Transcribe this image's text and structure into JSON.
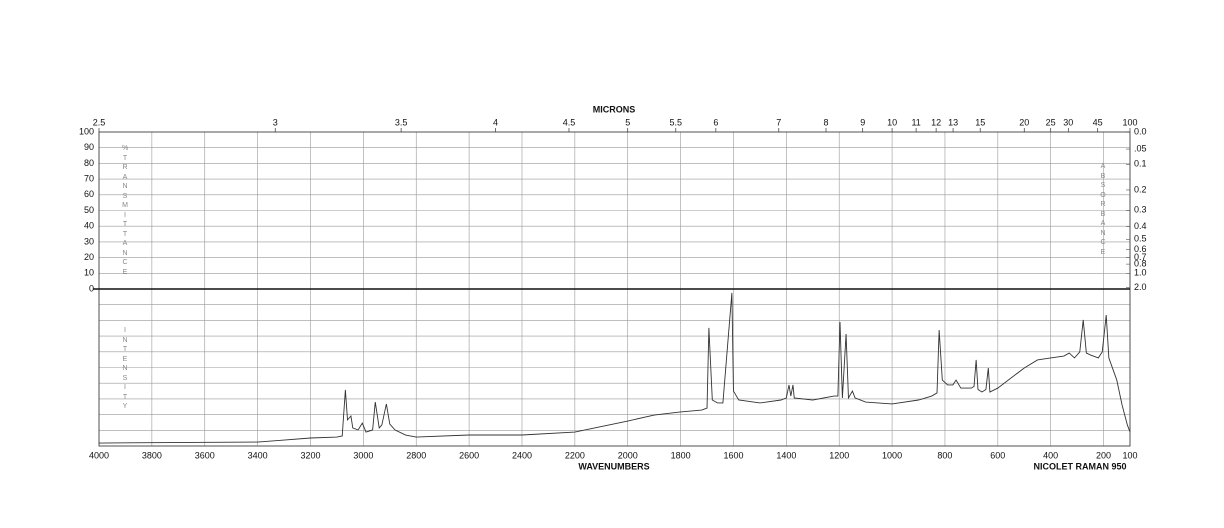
{
  "chart_data": {
    "type": "line",
    "top_axis_label": "MICRONS",
    "xlabel": "WAVENUMBERS",
    "instrument": "NICOLET RAMAN 950",
    "left_axis_label": "% TRANSMITTANCE",
    "right_axis_label": "ABSORBANCE",
    "lower_axis_label": "INTENSITY",
    "color": "#333333",
    "grid": true,
    "xlim": [
      4000,
      100
    ],
    "xticks": [
      4000,
      3800,
      3600,
      3400,
      3200,
      3000,
      2800,
      2600,
      2400,
      2200,
      2000,
      1800,
      1600,
      1400,
      1200,
      1000,
      800,
      600,
      400,
      200,
      100
    ],
    "micron_ticks": [
      2.5,
      3,
      3.5,
      4,
      4.5,
      5,
      5.5,
      6,
      7,
      8,
      9,
      10,
      11,
      12,
      13,
      15,
      20,
      25,
      30,
      45,
      100
    ],
    "ylim": [
      0,
      100
    ],
    "yticks": [
      0,
      10,
      20,
      30,
      40,
      50,
      60,
      70,
      80,
      90,
      100
    ],
    "y2ticks": [
      {
        "value": 0,
        "label": "0.0"
      },
      {
        "value": 0.05,
        "label": ".05"
      },
      0.1,
      0.2,
      0.3,
      0.4,
      0.5,
      0.6,
      0.7,
      0.8,
      {
        "value": 1,
        "label": "1.0"
      },
      {
        "value": 2,
        "label": "2.0"
      }
    ],
    "intensity_ylim": [
      0,
      100
    ],
    "x": [
      4000,
      3400,
      3300,
      3200,
      3100,
      3080,
      3068,
      3060,
      3047,
      3040,
      3020,
      3004,
      2990,
      2965,
      2955,
      2940,
      2930,
      2913,
      2900,
      2880,
      2840,
      2800,
      2600,
      2400,
      2200,
      2000,
      1900,
      1800,
      1720,
      1700,
      1693,
      1680,
      1660,
      1640,
      1606,
      1600,
      1580,
      1500,
      1420,
      1400,
      1390,
      1383,
      1375,
      1370,
      1300,
      1220,
      1205,
      1197,
      1188,
      1174,
      1165,
      1150,
      1140,
      1100,
      1000,
      900,
      850,
      830,
      822,
      810,
      790,
      770,
      758,
      740,
      700,
      690,
      682,
      675,
      660,
      645,
      636,
      630,
      600,
      500,
      450,
      400,
      350,
      330,
      310,
      290,
      277,
      265,
      250,
      220,
      205,
      190,
      180,
      150,
      130,
      110,
      100
    ],
    "values": [
      1.9,
      2.5,
      3.8,
      5.1,
      5.7,
      6.4,
      35.7,
      16.6,
      19.1,
      11.5,
      10.2,
      14.6,
      8.9,
      10.2,
      28.0,
      11.5,
      13.4,
      26.8,
      14.0,
      10.2,
      7.0,
      5.7,
      7.0,
      7.0,
      8.9,
      15.9,
      19.7,
      21.7,
      22.9,
      24.2,
      75.2,
      29.3,
      27.4,
      27.4,
      97.5,
      35.0,
      29.3,
      27.4,
      29.3,
      30.6,
      38.9,
      31.8,
      38.9,
      30.6,
      29.3,
      31.8,
      31.8,
      79.0,
      30.6,
      71.3,
      30.6,
      35.0,
      30.6,
      28.0,
      26.8,
      29.3,
      31.8,
      33.8,
      73.9,
      42.0,
      38.9,
      38.9,
      42.0,
      36.9,
      36.9,
      38.0,
      54.8,
      36.0,
      34.4,
      36.0,
      49.7,
      34.4,
      36.9,
      49.7,
      54.8,
      56.1,
      57.3,
      59.2,
      56.1,
      59.9,
      80.3,
      59.2,
      58.0,
      56.1,
      59.9,
      83.4,
      56.1,
      42.0,
      26.1,
      13.4,
      8.9
    ]
  }
}
